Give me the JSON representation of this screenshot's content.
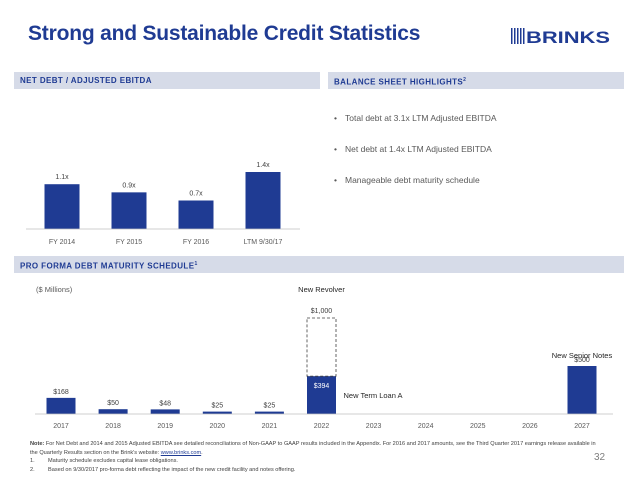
{
  "title": "Strong and Sustainable Credit Statistics",
  "logo": {
    "text": "BRINKS"
  },
  "colors": {
    "accent": "#1f3b93",
    "header_bg": "#d6dbe8",
    "text": "#404040"
  },
  "sections": {
    "ebitda_header": "NET DEBT / ADJUSTED EBITDA",
    "balance_header": "BALANCE SHEET HIGHLIGHTS",
    "balance_header_sup": "2",
    "maturity_header": "PRO FORMA DEBT MATURITY SCHEDULE",
    "maturity_header_sup": "1"
  },
  "balance_highlights": [
    "Total debt at 3.1x LTM Adjusted EBITDA",
    "Net debt at 1.4x LTM Adjusted EBITDA",
    "Manageable debt maturity schedule"
  ],
  "chart_data": [
    {
      "type": "bar",
      "title": "NET DEBT / ADJUSTED EBITDA",
      "categories": [
        "FY 2014",
        "FY 2015",
        "FY 2016",
        "LTM 9/30/17"
      ],
      "values": [
        1.1,
        0.9,
        0.7,
        1.4
      ],
      "labels": [
        "1.1x",
        "0.9x",
        "0.7x",
        "1.4x"
      ],
      "ylim": [
        0,
        1.6
      ],
      "xlabel": "",
      "ylabel": ""
    },
    {
      "type": "bar",
      "title": "PRO FORMA DEBT MATURITY SCHEDULE",
      "unit_label": "($ Millions)",
      "categories": [
        "2017",
        "2018",
        "2019",
        "2020",
        "2021",
        "2022",
        "2023",
        "2024",
        "2025",
        "2026",
        "2027"
      ],
      "values": [
        168,
        50,
        48,
        25,
        25,
        394,
        0,
        0,
        0,
        0,
        500
      ],
      "labels": [
        "$168",
        "$50",
        "$48",
        "$25",
        "$25",
        "$394",
        "",
        "",
        "",
        "",
        "$500"
      ],
      "revolver": {
        "category": "2022",
        "capacity": 1000,
        "label": "$1,000"
      },
      "annotations": {
        "revolver": "New Revolver",
        "term_loan": "New Term Loan A",
        "senior_notes": "New Senior Notes"
      },
      "ylim": [
        0,
        1000
      ]
    }
  ],
  "notes": {
    "note_label": "Note:",
    "note_text": "For Net Debt and 2014 and 2015 Adjusted EBITDA see detailed reconciliations of Non-GAAP to GAAP results included in the Appendix.  For 2016 and 2017 amounts, see the Third Quarter 2017 earnings release available in the Quarterly Results section on the Brink's website:",
    "link": "www.brinks.com",
    "footnotes": [
      {
        "n": "1.",
        "text": "Maturity schedule excludes capital lease obligations."
      },
      {
        "n": "2.",
        "text": "Based on 9/30/2017 pro-forma debt reflecting the impact of the new credit facility and notes offering."
      }
    ]
  },
  "page_number": "32"
}
